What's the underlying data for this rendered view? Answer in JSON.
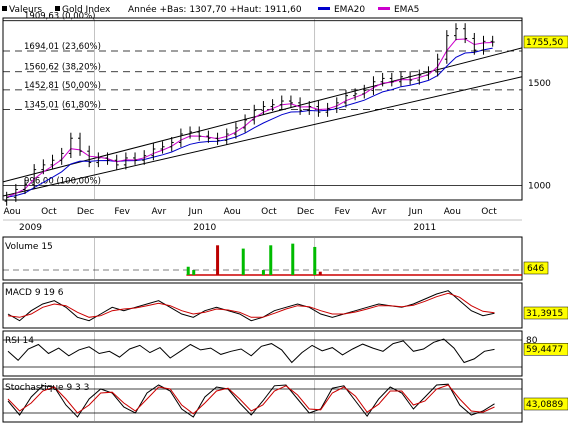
{
  "header": {
    "series_label": "Valeurs",
    "instrument": "Gold Index",
    "stats": "Année +Bas: 1307,70 +Haut: 1911,60",
    "ema20_label": "EMA20",
    "ema5_label": "EMA5"
  },
  "colors": {
    "ema20": "#0000cc",
    "ema5": "#cc00cc",
    "price": "#000000",
    "channel": "#000000",
    "volume_up": "#00bb00",
    "volume_down": "#bb0000",
    "volume_base": "#cc0000",
    "signal": "#cc0000",
    "last_value_bg": "#ffff00"
  },
  "chart_data": [
    {
      "type": "line",
      "name": "price",
      "title": "Gold Index",
      "x_tick_labels": [
        "Aou",
        "Oct",
        "Dec",
        "Fev",
        "Avr",
        "Jun",
        "Aou",
        "Oct",
        "Dec",
        "Fev",
        "Avr",
        "Jun",
        "Aou",
        "Oct"
      ],
      "x_tick_positions": [
        0.5,
        2.5,
        4.5,
        6.5,
        8.5,
        10.5,
        12.5,
        14.5,
        16.5,
        18.5,
        20.5,
        22.5,
        24.5,
        26.5
      ],
      "year_labels": [
        {
          "label": "2009",
          "at": 1.5
        },
        {
          "label": "2010",
          "at": 11
        },
        {
          "label": "2011",
          "at": 23
        }
      ],
      "y_ticks": [
        1000,
        1500
      ],
      "y_tick_labels": [
        "1000",
        "1500"
      ],
      "yscale": "log",
      "ylim": [
        940,
        1930
      ],
      "xlim": [
        0,
        28.3
      ],
      "last_value": 1755.5,
      "last_value_label": "1755,50",
      "fib_levels": [
        {
          "label": "1909,63 (0,00%)",
          "value": 1909.63
        },
        {
          "label": "1694,01 (23,60%)",
          "value": 1694.01
        },
        {
          "label": "1560,62 (38,20%)",
          "value": 1560.62
        },
        {
          "label": "1452,81 (50,00%)",
          "value": 1452.81
        },
        {
          "label": "1345,01 (61,80%)",
          "value": 1345.01
        },
        {
          "label": "996,00 (100,00%)",
          "value": 996.0
        }
      ],
      "channel_upper": [
        [
          0,
          1010
        ],
        [
          28.3,
          1715
        ]
      ],
      "channel_lower": [
        [
          0,
          955
        ],
        [
          28.3,
          1530
        ]
      ],
      "x": [
        0.2,
        0.7,
        1.2,
        1.7,
        2.2,
        2.7,
        3.2,
        3.7,
        4.2,
        4.7,
        5.2,
        5.7,
        6.2,
        6.7,
        7.2,
        7.7,
        8.2,
        8.7,
        9.2,
        9.7,
        10.2,
        10.7,
        11.2,
        11.7,
        12.2,
        12.7,
        13.2,
        13.7,
        14.2,
        14.7,
        15.2,
        15.7,
        16.2,
        16.7,
        17.2,
        17.7,
        18.2,
        18.7,
        19.2,
        19.7,
        20.2,
        20.7,
        21.2,
        21.7,
        22.2,
        22.7,
        23.2,
        23.7,
        24.2,
        24.7,
        25.2,
        25.7,
        26.2,
        26.7
      ],
      "close": [
        950,
        980,
        1000,
        1060,
        1080,
        1100,
        1130,
        1200,
        1140,
        1090,
        1110,
        1100,
        1080,
        1110,
        1100,
        1120,
        1150,
        1160,
        1180,
        1220,
        1230,
        1210,
        1200,
        1190,
        1220,
        1250,
        1290,
        1340,
        1360,
        1370,
        1390,
        1380,
        1340,
        1360,
        1330,
        1350,
        1380,
        1420,
        1430,
        1450,
        1500,
        1520,
        1500,
        1530,
        1510,
        1540,
        1560,
        1640,
        1800,
        1850,
        1780,
        1700,
        1760,
        1755
      ]
    },
    {
      "type": "bar",
      "name": "volume",
      "title": "Volume 15",
      "last_value_label": "646",
      "spikes": [
        {
          "x": 10.1,
          "value": 0.25,
          "direction": "up"
        },
        {
          "x": 10.4,
          "value": 0.15,
          "direction": "up"
        },
        {
          "x": 11.7,
          "value": 0.9,
          "direction": "down"
        },
        {
          "x": 13.1,
          "value": 0.8,
          "direction": "up"
        },
        {
          "x": 14.2,
          "value": 0.15,
          "direction": "up"
        },
        {
          "x": 14.6,
          "value": 0.9,
          "direction": "up"
        },
        {
          "x": 15.8,
          "value": 0.95,
          "direction": "up"
        },
        {
          "x": 17.0,
          "value": 0.85,
          "direction": "up"
        },
        {
          "x": 17.3,
          "value": 0.1,
          "direction": "down"
        }
      ]
    },
    {
      "type": "line",
      "name": "macd",
      "title": "MACD 9 19 6",
      "last_value_label": "31,3915",
      "series": [
        {
          "name": "MACD",
          "values": [
            0.3,
            0.1,
            0.4,
            0.6,
            0.7,
            0.5,
            0.2,
            0.1,
            0.3,
            0.5,
            0.4,
            0.5,
            0.6,
            0.7,
            0.5,
            0.3,
            0.2,
            0.4,
            0.5,
            0.4,
            0.3,
            0.1,
            0.2,
            0.4,
            0.5,
            0.6,
            0.5,
            0.3,
            0.2,
            0.3,
            0.4,
            0.5,
            0.6,
            0.55,
            0.5,
            0.6,
            0.75,
            0.9,
            1.0,
            0.7,
            0.4,
            0.25,
            0.32
          ]
        },
        {
          "name": "Signal",
          "values": [
            0.25,
            0.2,
            0.3,
            0.5,
            0.6,
            0.55,
            0.35,
            0.2,
            0.25,
            0.4,
            0.45,
            0.48,
            0.55,
            0.62,
            0.55,
            0.4,
            0.3,
            0.35,
            0.45,
            0.42,
            0.35,
            0.2,
            0.2,
            0.32,
            0.45,
            0.55,
            0.52,
            0.4,
            0.3,
            0.3,
            0.36,
            0.45,
            0.55,
            0.55,
            0.52,
            0.56,
            0.68,
            0.82,
            0.92,
            0.8,
            0.55,
            0.38,
            0.34
          ]
        }
      ]
    },
    {
      "type": "line",
      "name": "rsi",
      "title": "RSI 14",
      "y_tick_labels": [
        "80"
      ],
      "y_ticks": [
        80
      ],
      "guides": [
        80,
        20
      ],
      "ylim": [
        0,
        100
      ],
      "last_value": 59.4477,
      "last_value_label": "59,4477",
      "values": [
        55,
        35,
        60,
        70,
        50,
        62,
        45,
        58,
        65,
        50,
        55,
        42,
        60,
        68,
        52,
        63,
        40,
        55,
        70,
        58,
        62,
        48,
        55,
        60,
        45,
        66,
        72,
        58,
        30,
        52,
        68,
        56,
        63,
        47,
        60,
        71,
        62,
        55,
        72,
        78,
        55,
        60,
        75,
        82,
        62,
        30,
        38,
        55,
        59
      ]
    },
    {
      "type": "line",
      "name": "stochastic",
      "title": "Stochastique 9 3 3",
      "last_value_label": "43,0889",
      "series": [
        {
          "name": "K",
          "values": [
            50,
            15,
            60,
            88,
            85,
            40,
            10,
            55,
            80,
            70,
            35,
            20,
            70,
            90,
            75,
            30,
            10,
            60,
            85,
            80,
            45,
            15,
            50,
            88,
            90,
            55,
            20,
            30,
            82,
            88,
            50,
            12,
            55,
            85,
            70,
            30,
            60,
            90,
            92,
            40,
            15,
            25,
            43
          ]
        },
        {
          "name": "D",
          "values": [
            55,
            25,
            45,
            75,
            85,
            55,
            20,
            40,
            70,
            72,
            45,
            25,
            55,
            85,
            80,
            40,
            18,
            45,
            75,
            82,
            55,
            25,
            40,
            75,
            88,
            65,
            30,
            28,
            70,
            85,
            62,
            22,
            42,
            75,
            75,
            40,
            50,
            80,
            90,
            55,
            25,
            22,
            35
          ]
        }
      ]
    }
  ]
}
